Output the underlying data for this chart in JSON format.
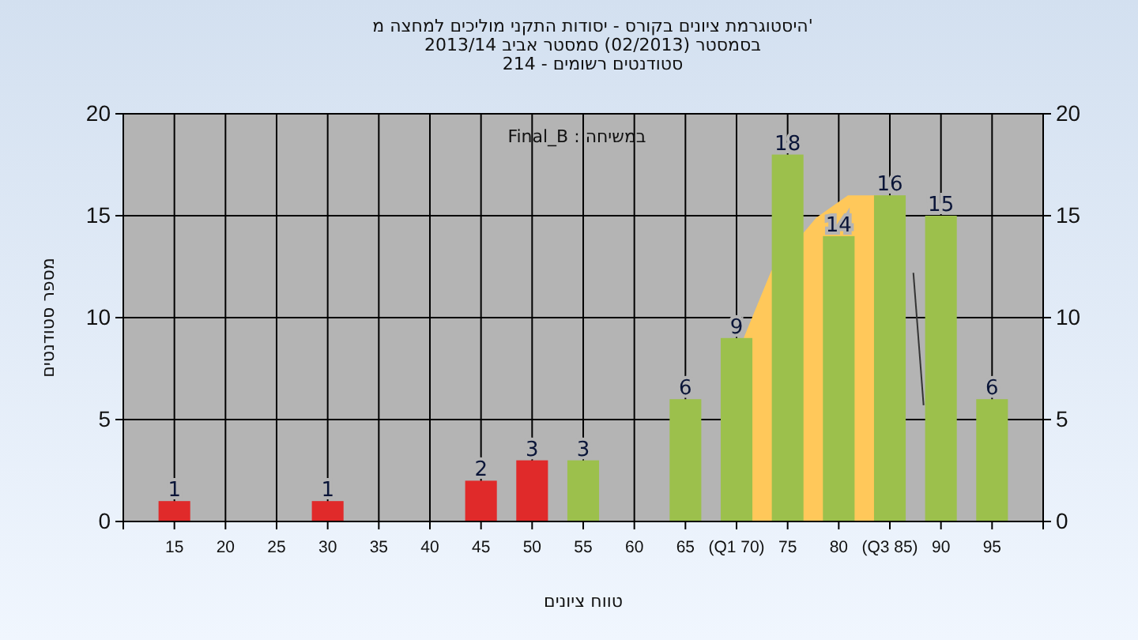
{
  "chart_data": {
    "type": "bar",
    "title": "היסטוגרמת ציונים בקורס - יסודות התקני מוליכים למחצה מ'\nבסמסטר  (02/2013)  סמסטר אביב 2013/14\nסטודנטים רשומים - 214",
    "xlabel": "טווח ציונים",
    "ylabel": "מספר סטודנטים",
    "annotations": [
      "Final_B : במשיחה"
    ],
    "xlim": [
      10,
      100
    ],
    "xticks": [
      15,
      20,
      25,
      30,
      35,
      40,
      45,
      50,
      55,
      60,
      65,
      {
        "value": 70,
        "label": "(Q1 70)"
      },
      75,
      80,
      {
        "value": 85,
        "label": "(Q3 85)"
      },
      90,
      95
    ],
    "ylim": [
      0,
      20
    ],
    "yticks": [
      0,
      5,
      10,
      15,
      20
    ],
    "y2lim": [
      0,
      20
    ],
    "y2ticks": [
      0,
      5,
      10,
      15,
      20
    ],
    "grid": true,
    "series": [
      {
        "type": "area",
        "color": "#ffc85a",
        "x": [
          70.7,
          73.4,
          77.8,
          80.9,
          84.2
        ],
        "values": [
          9,
          12.3,
          14.9,
          16,
          16
        ]
      },
      {
        "type": "line",
        "color": "#333333",
        "x": [
          87.3,
          88.3
        ],
        "values": [
          12.2,
          5.7
        ]
      },
      {
        "x": [
          15,
          30,
          45,
          50,
          55,
          65,
          70,
          75,
          80,
          85,
          90,
          95
        ],
        "values": [
          1,
          1,
          2,
          3,
          3,
          6,
          9,
          18,
          14,
          16,
          15,
          6
        ],
        "value_labels": [
          "1",
          "1",
          "2",
          "3",
          "3",
          "6",
          "9",
          "18",
          "14",
          "16",
          "15",
          "6"
        ],
        "colors": [
          "#e02a2a",
          "#e02a2a",
          "#e02a2a",
          "#e02a2a",
          "#9cc04c",
          "#9cc04c",
          "#9cc04c",
          "#9cc04c",
          "#9cc04c",
          "#9cc04c",
          "#9cc04c",
          "#9cc04c"
        ]
      }
    ]
  }
}
